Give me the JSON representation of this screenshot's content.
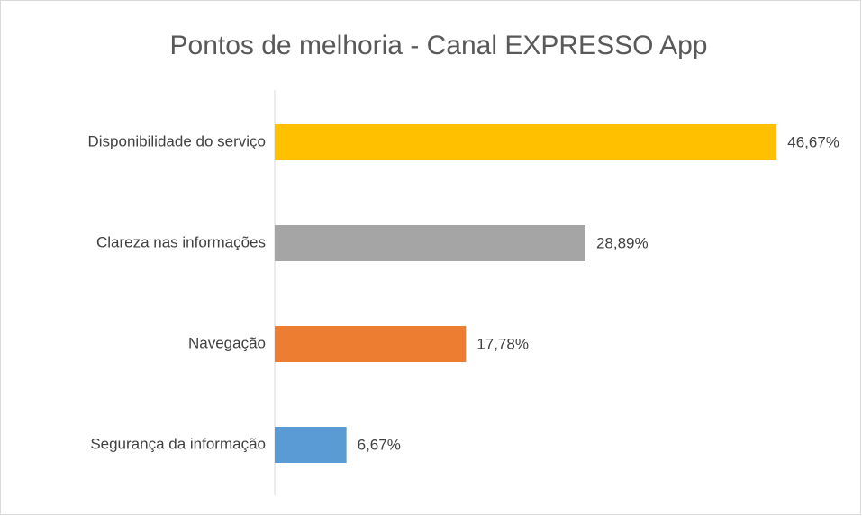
{
  "chart_data": {
    "type": "barh",
    "title": "Pontos de melhoria - Canal EXPRESSO App",
    "categories": [
      "Disponibilidade do serviço",
      "Clareza nas informações",
      "Navegação",
      "Segurança da informação"
    ],
    "values": [
      46.67,
      28.89,
      17.78,
      6.67
    ],
    "value_labels": [
      "46,67%",
      "28,89%",
      "17,78%",
      "6,67%"
    ],
    "colors": [
      "#ffc000",
      "#a5a5a5",
      "#ed7d31",
      "#5b9bd5"
    ],
    "xlim": [
      0,
      50
    ]
  }
}
